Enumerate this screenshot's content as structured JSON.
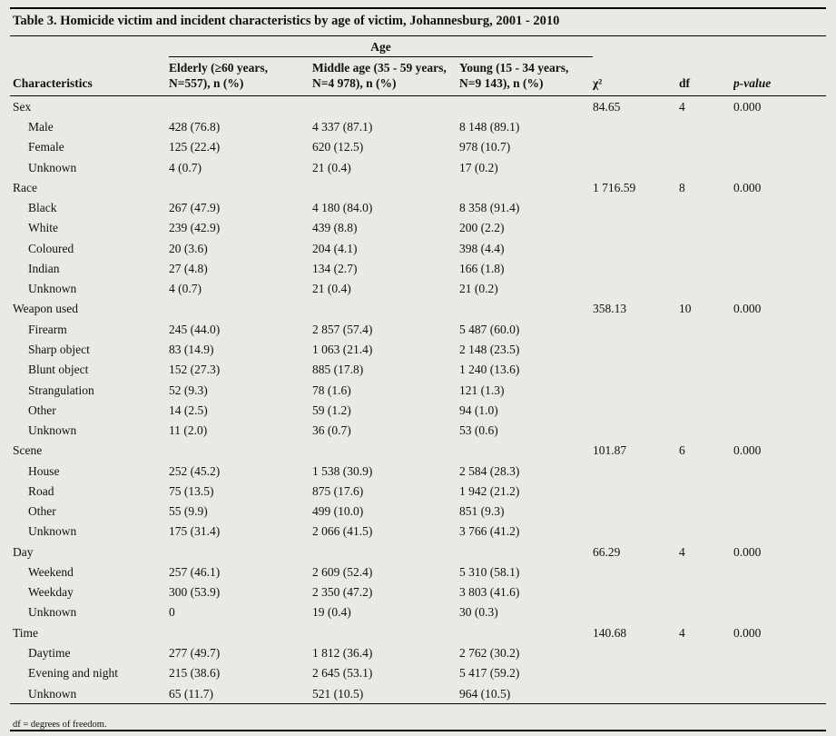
{
  "paper": {
    "title": "Table 3. Homicide victim and incident characteristics by age of victim, Johannesburg, 2001 - 2010",
    "footnote": "df = degrees of freedom."
  },
  "table": {
    "age_header": "Age",
    "columns": {
      "characteristics": "Characteristics",
      "groups": [
        {
          "line1": "Elderly (≥60 years,",
          "line2": "N=557), n (%)"
        },
        {
          "line1": "Middle age (35 - 59 years,",
          "line2": "N=4 978), n (%)"
        },
        {
          "line1": "Young (15 - 34 years,",
          "line2": "N=9 143), n (%)"
        }
      ],
      "chi2": "χ²",
      "df": "df",
      "pvalue": "p-value"
    },
    "sections": [
      {
        "name": "Sex",
        "chi2": "84.65",
        "df": "4",
        "p": "0.000",
        "rows": [
          {
            "label": "Male",
            "values": [
              "428 (76.8)",
              "4 337 (87.1)",
              "8 148 (89.1)"
            ]
          },
          {
            "label": "Female",
            "values": [
              "125 (22.4)",
              "620 (12.5)",
              "978 (10.7)"
            ]
          },
          {
            "label": "Unknown",
            "values": [
              "4 (0.7)",
              "21 (0.4)",
              "17 (0.2)"
            ]
          }
        ]
      },
      {
        "name": "Race",
        "chi2": "1 716.59",
        "df": "8",
        "p": "0.000",
        "rows": [
          {
            "label": "Black",
            "values": [
              "267 (47.9)",
              "4 180 (84.0)",
              "8 358 (91.4)"
            ]
          },
          {
            "label": "White",
            "values": [
              "239 (42.9)",
              "439 (8.8)",
              "200 (2.2)"
            ]
          },
          {
            "label": "Coloured",
            "values": [
              "20 (3.6)",
              "204 (4.1)",
              "398 (4.4)"
            ]
          },
          {
            "label": "Indian",
            "values": [
              "27 (4.8)",
              "134 (2.7)",
              "166 (1.8)"
            ]
          },
          {
            "label": "Unknown",
            "values": [
              "4 (0.7)",
              "21 (0.4)",
              "21 (0.2)"
            ]
          }
        ]
      },
      {
        "name": "Weapon used",
        "chi2": "358.13",
        "df": "10",
        "p": "0.000",
        "rows": [
          {
            "label": "Firearm",
            "values": [
              "245 (44.0)",
              "2 857 (57.4)",
              "5 487 (60.0)"
            ]
          },
          {
            "label": "Sharp object",
            "values": [
              "83 (14.9)",
              "1 063 (21.4)",
              "2 148 (23.5)"
            ]
          },
          {
            "label": "Blunt object",
            "values": [
              "152 (27.3)",
              "885 (17.8)",
              "1 240 (13.6)"
            ]
          },
          {
            "label": "Strangulation",
            "values": [
              "52 (9.3)",
              "78 (1.6)",
              "121 (1.3)"
            ]
          },
          {
            "label": "Other",
            "values": [
              "14 (2.5)",
              "59 (1.2)",
              "94 (1.0)"
            ]
          },
          {
            "label": "Unknown",
            "values": [
              "11 (2.0)",
              "36 (0.7)",
              "53 (0.6)"
            ]
          }
        ]
      },
      {
        "name": "Scene",
        "chi2": "101.87",
        "df": "6",
        "p": "0.000",
        "rows": [
          {
            "label": "House",
            "values": [
              "252 (45.2)",
              "1 538 (30.9)",
              "2 584 (28.3)"
            ]
          },
          {
            "label": "Road",
            "values": [
              "75 (13.5)",
              "875 (17.6)",
              "1 942 (21.2)"
            ]
          },
          {
            "label": "Other",
            "values": [
              "55 (9.9)",
              "499 (10.0)",
              "851 (9.3)"
            ]
          },
          {
            "label": "Unknown",
            "values": [
              "175 (31.4)",
              "2 066 (41.5)",
              "3 766 (41.2)"
            ]
          }
        ]
      },
      {
        "name": "Day",
        "chi2": "66.29",
        "df": "4",
        "p": "0.000",
        "rows": [
          {
            "label": "Weekend",
            "values": [
              "257 (46.1)",
              "2 609 (52.4)",
              "5 310 (58.1)"
            ]
          },
          {
            "label": "Weekday",
            "values": [
              "300 (53.9)",
              "2 350 (47.2)",
              "3 803 (41.6)"
            ]
          },
          {
            "label": "Unknown",
            "values": [
              "0",
              "19 (0.4)",
              "30 (0.3)"
            ]
          }
        ]
      },
      {
        "name": "Time",
        "chi2": "140.68",
        "df": "4",
        "p": "0.000",
        "rows": [
          {
            "label": "Daytime",
            "values": [
              "277 (49.7)",
              "1 812 (36.4)",
              "2 762 (30.2)"
            ]
          },
          {
            "label": "Evening and night",
            "values": [
              "215 (38.6)",
              "2 645 (53.1)",
              "5 417 (59.2)"
            ]
          },
          {
            "label": "Unknown",
            "values": [
              "65 (11.7)",
              "521 (10.5)",
              "964 (10.5)"
            ]
          }
        ]
      }
    ]
  }
}
